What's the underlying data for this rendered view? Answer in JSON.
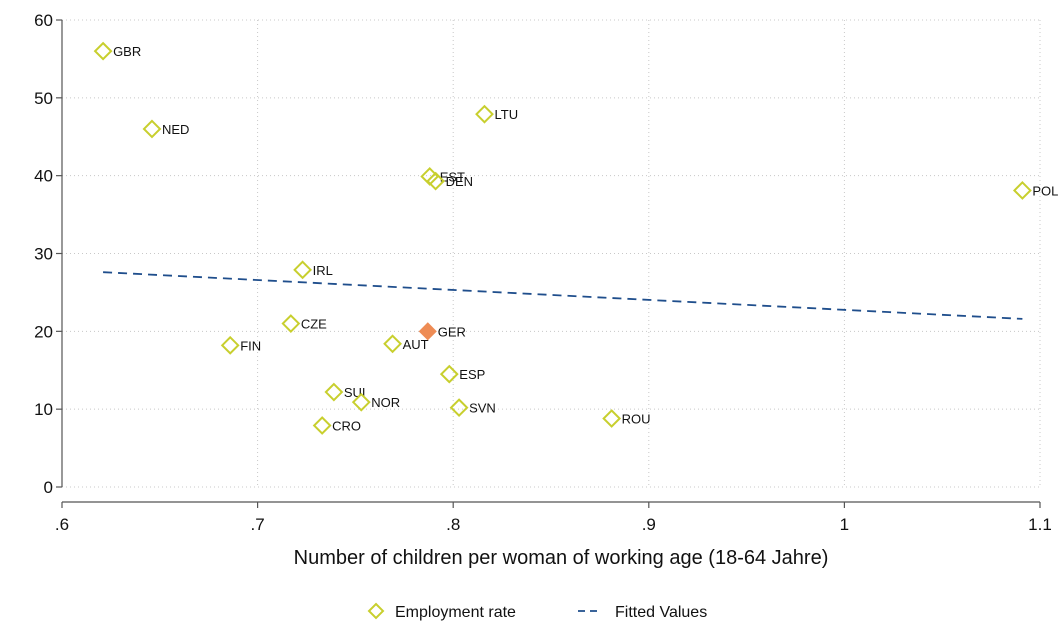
{
  "chart_data": {
    "type": "scatter",
    "xlabel": "Number of children per woman of working age (18-64 Jahre)",
    "ylabel": "",
    "xlim": [
      0.6,
      1.1
    ],
    "ylim": [
      0,
      60
    ],
    "xticks": [
      ".6",
      ".7",
      ".8",
      ".9",
      "1",
      "1.1"
    ],
    "xtick_values": [
      0.6,
      0.7,
      0.8,
      0.9,
      1.0,
      1.1
    ],
    "yticks": [
      "0",
      "10",
      "20",
      "30",
      "40",
      "50",
      "60"
    ],
    "ytick_values": [
      0,
      10,
      20,
      30,
      40,
      50,
      60
    ],
    "grid": true,
    "colors": {
      "marker": "#c8cf2e",
      "highlight": "#ee8c55",
      "fit": "#1f4e8c",
      "grid": "#c8c8c8"
    },
    "series": [
      {
        "name": "Employment rate",
        "marker": "hollow-diamond",
        "points": [
          {
            "label": "GBR",
            "x": 0.621,
            "y": 56.0
          },
          {
            "label": "NED",
            "x": 0.646,
            "y": 46.0
          },
          {
            "label": "LTU",
            "x": 0.816,
            "y": 47.9
          },
          {
            "label": "EST",
            "x": 0.788,
            "y": 39.9
          },
          {
            "label": "DEN",
            "x": 0.791,
            "y": 39.3
          },
          {
            "label": "POL",
            "x": 1.091,
            "y": 38.1
          },
          {
            "label": "IRL",
            "x": 0.723,
            "y": 27.9
          },
          {
            "label": "CZE",
            "x": 0.717,
            "y": 21.0
          },
          {
            "label": "FIN",
            "x": 0.686,
            "y": 18.2
          },
          {
            "label": "AUT",
            "x": 0.769,
            "y": 18.4
          },
          {
            "label": "GER",
            "x": 0.787,
            "y": 20.0,
            "highlight": true
          },
          {
            "label": "ESP",
            "x": 0.798,
            "y": 14.5
          },
          {
            "label": "SUI",
            "x": 0.739,
            "y": 12.2
          },
          {
            "label": "NOR",
            "x": 0.753,
            "y": 10.9
          },
          {
            "label": "SVN",
            "x": 0.803,
            "y": 10.2
          },
          {
            "label": "CRO",
            "x": 0.733,
            "y": 7.9
          },
          {
            "label": "ROU",
            "x": 0.881,
            "y": 8.8
          }
        ]
      },
      {
        "name": "Fitted Values",
        "type": "line",
        "style": "dashed",
        "x": [
          0.621,
          1.091
        ],
        "y": [
          27.6,
          21.6
        ]
      }
    ],
    "legend": {
      "position": "bottom",
      "entries": [
        "Employment rate",
        "Fitted Values"
      ]
    }
  }
}
